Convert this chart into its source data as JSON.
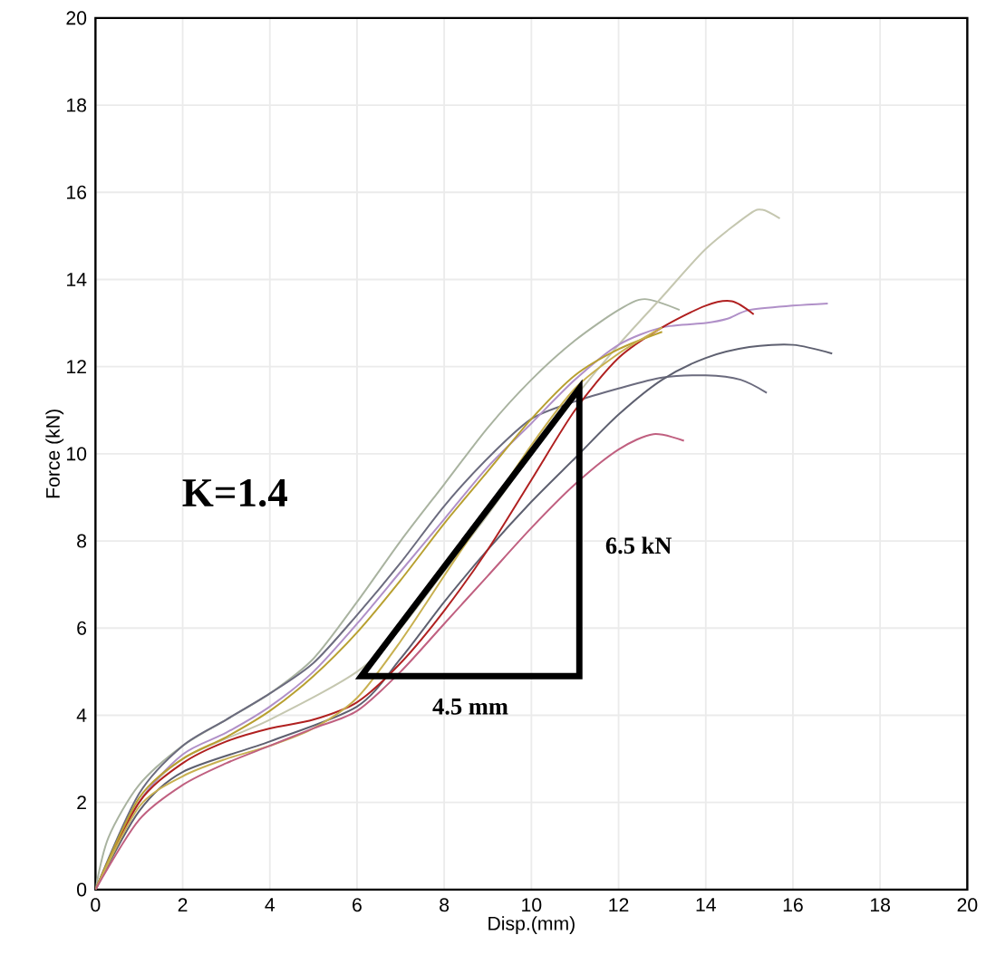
{
  "chart_data": {
    "type": "line",
    "xlabel": "Disp.(mm)",
    "ylabel": "Force (kN)",
    "xlim": [
      0,
      20
    ],
    "ylim": [
      0,
      20
    ],
    "xticks": [
      0,
      2,
      4,
      6,
      8,
      10,
      12,
      14,
      16,
      18,
      20
    ],
    "yticks": [
      0,
      2,
      4,
      6,
      8,
      10,
      12,
      14,
      16,
      18,
      20
    ],
    "grid": true,
    "line_style": "solid",
    "annotations": [
      "K=1.4",
      "6.5 kN",
      "4.5 mm"
    ],
    "series": [
      {
        "color": "#a9b3a0",
        "x": [
          0,
          0.3,
          1,
          2,
          3,
          4,
          5,
          6,
          7,
          8,
          9,
          10,
          11,
          12,
          12.6,
          13.4
        ],
        "values": [
          0,
          1.2,
          2.4,
          3.3,
          3.9,
          4.5,
          5.3,
          6.6,
          8.0,
          9.3,
          10.6,
          11.7,
          12.6,
          13.3,
          13.55,
          13.3
        ]
      },
      {
        "color": "#c5c7b0",
        "x": [
          0,
          1,
          2,
          4,
          6,
          7,
          8,
          9,
          10,
          11,
          12,
          13,
          14,
          15,
          15.3,
          15.7
        ],
        "values": [
          0,
          2.0,
          3.0,
          3.9,
          5.0,
          6.0,
          7.3,
          8.6,
          10.0,
          11.3,
          12.5,
          13.6,
          14.7,
          15.5,
          15.6,
          15.4
        ]
      },
      {
        "color": "#6b6b7e",
        "x": [
          0,
          1,
          2,
          3,
          4,
          5,
          6,
          7,
          8,
          9,
          10,
          11,
          12,
          13,
          14,
          14.8,
          15.4
        ],
        "values": [
          0,
          2.2,
          3.3,
          3.9,
          4.5,
          5.2,
          6.3,
          7.5,
          8.8,
          9.9,
          10.8,
          11.2,
          11.5,
          11.75,
          11.8,
          11.7,
          11.4
        ]
      },
      {
        "color": "#5e6070",
        "x": [
          0,
          1,
          2,
          4,
          6,
          7,
          8,
          9,
          10,
          11,
          12,
          13,
          14,
          15,
          16,
          16.9
        ],
        "values": [
          0,
          1.8,
          2.7,
          3.4,
          4.2,
          5.3,
          6.6,
          7.8,
          8.9,
          9.9,
          10.9,
          11.7,
          12.2,
          12.45,
          12.5,
          12.3
        ]
      },
      {
        "color": "#b090c8",
        "x": [
          0,
          1,
          2,
          3,
          4,
          5,
          6,
          7,
          8,
          9,
          10,
          11,
          12,
          13,
          14,
          14.5,
          15,
          16,
          16.8
        ],
        "values": [
          0,
          2.0,
          3.1,
          3.6,
          4.2,
          5.0,
          6.1,
          7.3,
          8.5,
          9.7,
          10.7,
          11.7,
          12.5,
          12.9,
          13.0,
          13.1,
          13.3,
          13.4,
          13.45
        ]
      },
      {
        "color": "#b02020",
        "x": [
          0,
          1,
          2,
          3,
          4,
          5,
          6,
          7,
          8,
          9,
          10,
          11,
          12,
          13,
          14,
          14.6,
          15.1
        ],
        "values": [
          0,
          2.0,
          2.9,
          3.4,
          3.7,
          3.9,
          4.3,
          5.2,
          6.4,
          7.8,
          9.4,
          11.0,
          12.2,
          12.9,
          13.4,
          13.5,
          13.2
        ]
      },
      {
        "color": "#b8a030",
        "x": [
          0,
          1,
          2,
          3,
          4,
          5,
          6,
          7,
          8,
          9,
          10,
          11,
          12,
          13
        ],
        "values": [
          0,
          2.1,
          3.0,
          3.5,
          4.1,
          4.9,
          5.9,
          7.1,
          8.4,
          9.6,
          10.8,
          11.8,
          12.4,
          12.8
        ]
      },
      {
        "color": "#c8b050",
        "x": [
          0,
          1,
          2,
          3,
          4,
          5,
          6,
          7,
          8,
          9,
          10,
          11,
          12,
          13
        ],
        "values": [
          0,
          1.9,
          2.6,
          3.0,
          3.3,
          3.7,
          4.4,
          5.7,
          7.2,
          8.7,
          10.2,
          11.5,
          12.3,
          12.9
        ]
      },
      {
        "color": "#c06080",
        "x": [
          0,
          1,
          2,
          3,
          4,
          5,
          6,
          7,
          8,
          9,
          10,
          11,
          12,
          12.8,
          13.5
        ],
        "values": [
          0,
          1.6,
          2.4,
          2.9,
          3.3,
          3.7,
          4.1,
          5.0,
          6.1,
          7.2,
          8.3,
          9.3,
          10.1,
          10.45,
          10.3
        ]
      }
    ]
  }
}
